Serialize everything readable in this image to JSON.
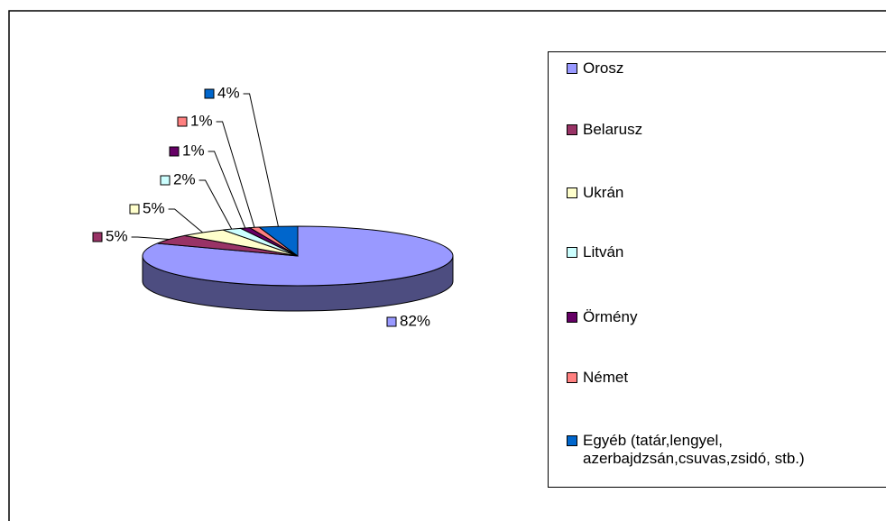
{
  "chart_data": {
    "type": "pie3d",
    "categories": [
      "Orosz",
      "Belarusz",
      "Ukrán",
      "Litván",
      "Örmény",
      "Német",
      "Egyéb (tatár,lengyel, azerbajdzsán,csuvas,zsidó, stb.)"
    ],
    "values": [
      82,
      5,
      5,
      2,
      1,
      1,
      4
    ],
    "value_labels": [
      "82%",
      "5%",
      "5%",
      "2%",
      "1%",
      "1%",
      "4%"
    ],
    "colors": [
      "#9999ff",
      "#993366",
      "#ffffcc",
      "#ccffff",
      "#660066",
      "#ff8080",
      "#0066cc"
    ],
    "legend": "right"
  }
}
